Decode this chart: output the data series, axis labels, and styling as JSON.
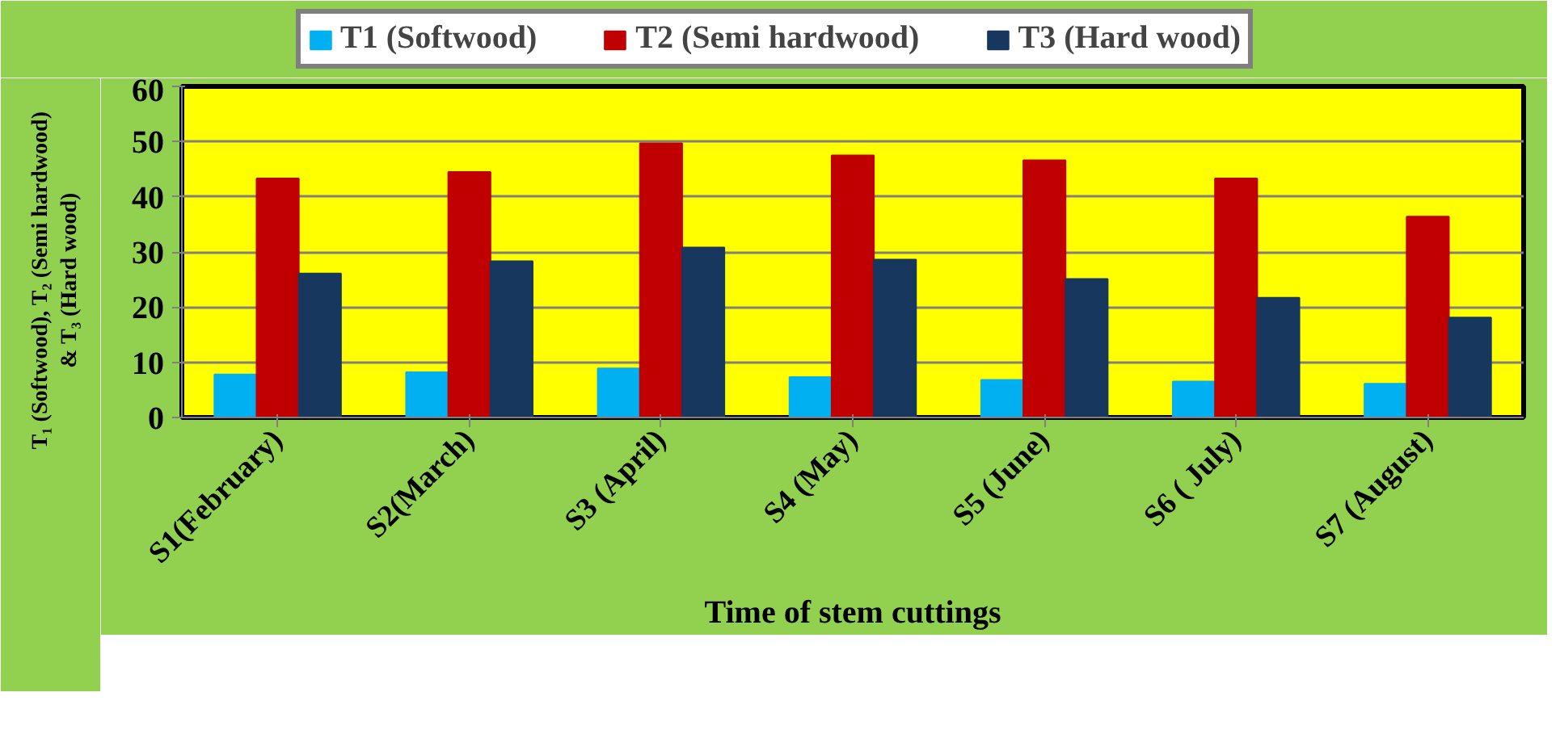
{
  "chart_data": {
    "type": "bar",
    "xlabel": "Time of stem cuttings",
    "ylabel": "T₁ (Softwood), T₂ (Semi hardwood)\n& T₃ (Hard wood)",
    "categories": [
      "S1(February)",
      "S2(March)",
      "S3 (April)",
      "S4 (May)",
      "S5 (June)",
      "S6 ( July)",
      "S7 (August)"
    ],
    "series": [
      {
        "name": "T1 (Softwood)",
        "color": "#00b0f0",
        "values": [
          7.8,
          8.2,
          8.9,
          7.3,
          6.8,
          6.5,
          6.1
        ]
      },
      {
        "name": "T2 (Semi hardwood)",
        "color": "#c00000",
        "values": [
          43.3,
          44.5,
          49.7,
          47.5,
          46.6,
          43.3,
          36.4
        ]
      },
      {
        "name": "T3 (Hard wood)",
        "color": "#17375e",
        "values": [
          26.1,
          28.3,
          30.8,
          28.6,
          25.1,
          21.7,
          18.1
        ]
      }
    ],
    "ylim": [
      0,
      60
    ],
    "yticks": [
      0,
      10,
      20,
      30,
      40,
      50,
      60
    ],
    "grid": "y",
    "legend": "top"
  }
}
